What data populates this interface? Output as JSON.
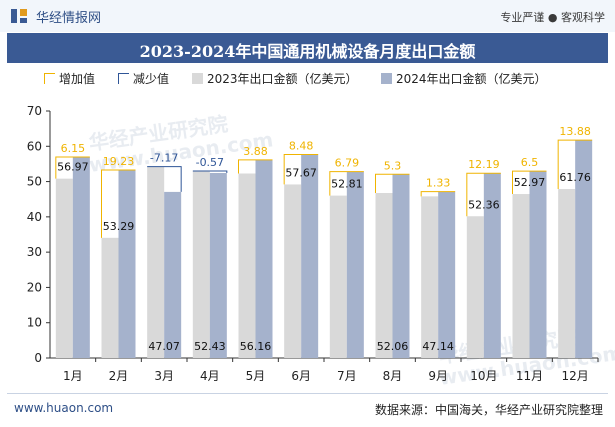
{
  "header": {
    "brand": "华经情报网",
    "tagline": "专业严谨 ● 客观科学"
  },
  "footer": {
    "url": "www.huaon.com",
    "source": "数据来源：中国海关，华经产业研究院整理"
  },
  "watermark": {
    "line1": "华经产业研究院",
    "line2": "www.huaon.com"
  },
  "colors": {
    "increase": "#f0b400",
    "decrease": "#2f5597",
    "bar2023": "#d9d9d9",
    "bar2024": "#a5b2cc",
    "titlebar": "#3a5a94"
  },
  "chart_data": {
    "type": "bar",
    "title": "2023-2024年中国通用机械设备月度出口金额",
    "legend": [
      "增加值",
      "减少值",
      "2023年出口金额（亿美元）",
      "2024年出口金额（亿美元）"
    ],
    "categories": [
      "1月",
      "2月",
      "3月",
      "4月",
      "5月",
      "6月",
      "7月",
      "8月",
      "9月",
      "10月",
      "11月",
      "12月"
    ],
    "series": [
      {
        "name": "2023年出口金额（亿美元）",
        "values": [
          50.82,
          34.06,
          54.24,
          53.0,
          52.28,
          49.19,
          46.02,
          46.76,
          45.81,
          40.17,
          46.47,
          47.88
        ]
      },
      {
        "name": "2024年出口金额（亿美元）",
        "values": [
          56.97,
          53.29,
          47.07,
          52.43,
          56.16,
          57.67,
          52.81,
          52.06,
          47.14,
          52.36,
          52.97,
          61.76
        ]
      }
    ],
    "changes": [
      6.15,
      19.23,
      -7.17,
      -0.57,
      3.88,
      8.48,
      6.79,
      5.3,
      1.33,
      12.19,
      6.5,
      13.88
    ],
    "yticks": [
      0,
      10,
      20,
      30,
      40,
      50,
      60,
      70
    ],
    "ylim": [
      0,
      70
    ],
    "legend_position": "top",
    "grid": false
  }
}
